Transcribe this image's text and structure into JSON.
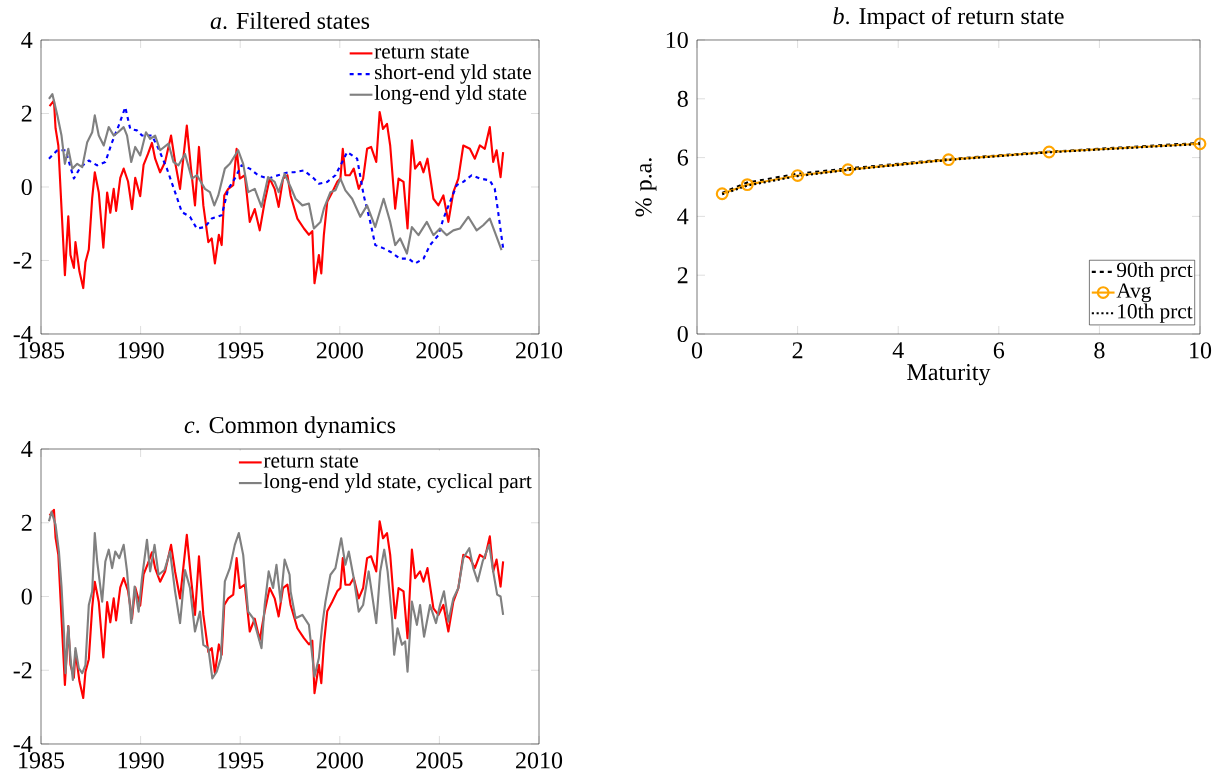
{
  "chart_data": [
    {
      "type": "line",
      "title": "*a*. Filtered states",
      "xlim": [
        1985,
        2010
      ],
      "xticks": [
        1985,
        1990,
        1995,
        2000,
        2005,
        2010
      ],
      "ylim": [
        -4,
        4
      ],
      "yticks": [
        -4,
        -2,
        0,
        2,
        4
      ],
      "legend": "top right",
      "series": [
        {
          "name": "return state",
          "color": "#ff0000",
          "line_style": "solid",
          "x": [
            1985.43,
            1985.65,
            1985.73,
            1985.87,
            1985.98,
            1986.2,
            1986.37,
            1986.48,
            1986.65,
            1986.73,
            1986.93,
            1987.12,
            1987.23,
            1987.4,
            1987.57,
            1987.7,
            1987.9,
            1988.13,
            1988.32,
            1988.48,
            1988.65,
            1988.77,
            1988.98,
            1989.15,
            1989.37,
            1989.57,
            1989.73,
            1989.98,
            1990.15,
            1990.37,
            1990.57,
            1990.73,
            1990.98,
            1991.23,
            1991.53,
            1991.73,
            1991.98,
            1992.32,
            1992.53,
            1992.73,
            1992.93,
            1993.15,
            1993.4,
            1993.57,
            1993.73,
            1993.93,
            1994.07,
            1994.2,
            1994.4,
            1994.65,
            1994.82,
            1994.98,
            1995.23,
            1995.48,
            1995.73,
            1995.98,
            1996.23,
            1996.48,
            1996.73,
            1996.93,
            1997.15,
            1997.37,
            1997.53,
            1997.87,
            1998.2,
            1998.45,
            1998.62,
            1998.73,
            1998.95,
            1999.07,
            1999.2,
            1999.37,
            1999.62,
            1999.87,
            2000.03,
            2000.15,
            2000.28,
            2000.5,
            2000.7,
            2000.95,
            2001.17,
            2001.37,
            2001.57,
            2001.83,
            2002.0,
            2002.17,
            2002.37,
            2002.53,
            2002.78,
            2002.95,
            2003.2,
            2003.4,
            2003.62,
            2003.78,
            2004.03,
            2004.2,
            2004.4,
            2004.7,
            2004.95,
            2005.2,
            2005.45,
            2005.7,
            2005.95,
            2006.2,
            2006.53,
            2006.78,
            2007.03,
            2007.28,
            2007.53,
            2007.7,
            2007.87,
            2008.07,
            2008.2
          ],
          "values": [
            2.2,
            2.35,
            1.6,
            1.13,
            -0.05,
            -2.4,
            -0.8,
            -1.85,
            -2.2,
            -1.5,
            -2.3,
            -2.75,
            -2.05,
            -1.7,
            -0.3,
            0.4,
            -0.15,
            -1.65,
            -0.15,
            -0.7,
            -0.05,
            -0.65,
            0.25,
            0.5,
            0.15,
            -0.6,
            0.25,
            -0.25,
            0.6,
            0.9,
            1.2,
            0.77,
            0.4,
            0.68,
            1.4,
            0.68,
            -0.05,
            1.67,
            0.5,
            -0.5,
            1.09,
            -0.5,
            -1.5,
            -1.4,
            -2.08,
            -1.3,
            -1.58,
            -0.23,
            -0.05,
            0.05,
            1.04,
            0.23,
            0.32,
            -0.95,
            -0.6,
            -1.18,
            -0.4,
            0.23,
            -0.05,
            -0.54,
            0.23,
            0.32,
            -0.23,
            -0.86,
            -1.13,
            -1.3,
            -1.2,
            -2.62,
            -1.85,
            -2.35,
            -1.3,
            -0.4,
            -0.14,
            0.14,
            0.23,
            1.04,
            0.32,
            0.32,
            0.5,
            -0.05,
            0.23,
            1.04,
            1.09,
            0.68,
            2.04,
            1.58,
            1.72,
            1.13,
            -0.59,
            0.23,
            0.14,
            -1.13,
            1.27,
            0.5,
            0.68,
            0.4,
            0.77,
            -0.32,
            -0.5,
            -0.23,
            -0.95,
            -0.14,
            0.23,
            1.13,
            1.04,
            0.77,
            1.13,
            1.04,
            1.63,
            0.68,
            1.0,
            0.27,
            0.95
          ]
        },
        {
          "name": "short-end yld state",
          "color": "#0000ff",
          "line_style": "dashed",
          "x": [
            1985.4,
            1985.82,
            1986.23,
            1986.65,
            1986.98,
            1987.4,
            1987.82,
            1988.23,
            1988.57,
            1988.9,
            1989.23,
            1989.48,
            1989.82,
            1990.07,
            1990.57,
            1990.9,
            1991.32,
            1991.73,
            1992.07,
            1992.48,
            1992.82,
            1993.23,
            1993.57,
            1994.07,
            1994.4,
            1994.73,
            1995.07,
            1995.48,
            1995.9,
            1996.4,
            1996.9,
            1997.4,
            1997.7,
            1998.2,
            1998.7,
            1998.95,
            1999.37,
            1999.78,
            2000.12,
            2000.37,
            2000.87,
            2001.2,
            2001.53,
            2001.78,
            2002.2,
            2002.53,
            2003.03,
            2003.45,
            2003.78,
            2004.2,
            2004.53,
            2004.95,
            2005.2,
            2005.53,
            2005.87,
            2006.2,
            2006.62,
            2007.03,
            2007.53,
            2007.78,
            2007.95,
            2008.2
          ],
          "values": [
            0.77,
            1.0,
            1.0,
            0.23,
            0.54,
            0.72,
            0.59,
            0.68,
            1.22,
            1.67,
            2.17,
            1.58,
            1.54,
            1.4,
            1.4,
            1.04,
            0.5,
            -0.14,
            -0.68,
            -0.81,
            -1.13,
            -1.09,
            -0.86,
            -0.77,
            -0.05,
            0.23,
            0.59,
            0.5,
            0.32,
            0.23,
            0.32,
            0.4,
            0.4,
            0.45,
            0.23,
            0.09,
            0.14,
            0.32,
            0.68,
            0.95,
            0.77,
            -0.23,
            -0.95,
            -1.58,
            -1.67,
            -1.76,
            -1.95,
            -1.95,
            -2.08,
            -1.95,
            -1.58,
            -1.31,
            -0.86,
            -0.41,
            0.05,
            0.14,
            0.32,
            0.23,
            0.18,
            -0.05,
            -0.68,
            -1.67
          ]
        },
        {
          "name": "long-end yld state",
          "color": "#808080",
          "line_style": "solid",
          "x": [
            1985.4,
            1985.57,
            1985.82,
            1986.03,
            1986.2,
            1986.37,
            1986.57,
            1986.82,
            1987.07,
            1987.32,
            1987.57,
            1987.7,
            1987.9,
            1988.15,
            1988.4,
            1988.65,
            1988.87,
            1989.15,
            1989.32,
            1989.53,
            1989.73,
            1989.98,
            1990.27,
            1990.48,
            1990.73,
            1990.98,
            1991.4,
            1991.65,
            1991.9,
            1992.23,
            1992.57,
            1992.83,
            1993.23,
            1993.48,
            1993.7,
            1993.9,
            1994.23,
            1994.48,
            1994.9,
            1995.15,
            1995.4,
            1995.73,
            1996.07,
            1996.4,
            1996.73,
            1996.93,
            1997.23,
            1997.53,
            1997.78,
            1998.12,
            1998.45,
            1998.7,
            1999.03,
            1999.2,
            1999.53,
            1999.78,
            2000.03,
            2000.28,
            2000.62,
            2001.03,
            2001.37,
            2001.78,
            2002.2,
            2002.53,
            2002.78,
            2003.03,
            2003.37,
            2003.62,
            2003.95,
            2004.37,
            2004.7,
            2005.03,
            2005.37,
            2005.7,
            2006.03,
            2006.45,
            2006.87,
            2007.2,
            2007.53,
            2007.78,
            2008.12
          ],
          "values": [
            2.4,
            2.53,
            1.95,
            1.4,
            0.63,
            1.04,
            0.5,
            0.63,
            0.54,
            1.22,
            1.49,
            1.95,
            1.4,
            1.13,
            1.63,
            1.4,
            1.49,
            1.63,
            1.4,
            0.68,
            1.09,
            0.86,
            1.49,
            1.31,
            1.4,
            1.0,
            1.18,
            0.68,
            0.59,
            0.9,
            0.23,
            0.32,
            -0.05,
            -0.14,
            -0.5,
            -0.23,
            0.5,
            0.63,
            1.0,
            0.63,
            -0.14,
            -0.05,
            -0.54,
            0.27,
            0.14,
            -0.14,
            0.36,
            0,
            -0.32,
            -0.5,
            -0.45,
            -1.13,
            -0.95,
            -0.59,
            -0.14,
            -0.09,
            0.23,
            -0.09,
            -0.32,
            -0.81,
            -0.5,
            -1.09,
            -0.32,
            -0.95,
            -1.58,
            -1.4,
            -1.81,
            -1.09,
            -1.31,
            -0.95,
            -1.31,
            -1.13,
            -1.31,
            -1.18,
            -1.13,
            -0.81,
            -1.18,
            -1.04,
            -0.86,
            -1.22,
            -1.72
          ]
        }
      ]
    },
    {
      "type": "line",
      "title": "*b*. Impact of return state",
      "xlabel": "Maturity",
      "ylabel": "% p.a.",
      "x": [
        0.5,
        1,
        2,
        3,
        5,
        7,
        10
      ],
      "xlim": [
        0,
        10
      ],
      "xticks": [
        0,
        2,
        4,
        6,
        8,
        10
      ],
      "ylim": [
        0,
        10
      ],
      "yticks": [
        0,
        2,
        4,
        6,
        8,
        10
      ],
      "legend": "bottom right",
      "series": [
        {
          "name": "90th prct",
          "color": "#000000",
          "line_style": "dashed",
          "values": [
            4.8,
            5.15,
            5.45,
            5.63,
            5.95,
            6.2,
            6.5
          ]
        },
        {
          "name": "Avg",
          "color": "#ffa500",
          "line_style": "solid",
          "marker": "circle",
          "values": [
            4.77,
            5.08,
            5.39,
            5.59,
            5.93,
            6.19,
            6.47
          ]
        },
        {
          "name": "10th prct",
          "color": "#000000",
          "line_style": "dotted",
          "values": [
            4.75,
            5.05,
            5.37,
            5.58,
            5.92,
            6.18,
            6.46
          ]
        }
      ]
    },
    {
      "type": "line",
      "title": "*c*. Common dynamics",
      "xlim": [
        1985,
        2010
      ],
      "xticks": [
        1985,
        1990,
        1995,
        2000,
        2005,
        2010
      ],
      "ylim": [
        -4,
        4
      ],
      "yticks": [
        -4,
        -2,
        0,
        2,
        4
      ],
      "legend": "top right",
      "series": [
        {
          "name": "return state",
          "color": "#ff0000",
          "line_style": "solid",
          "x": [
            1985.43,
            1985.65,
            1985.73,
            1985.87,
            1985.98,
            1986.2,
            1986.37,
            1986.48,
            1986.65,
            1986.73,
            1986.93,
            1987.12,
            1987.23,
            1987.4,
            1987.57,
            1987.7,
            1987.9,
            1988.13,
            1988.32,
            1988.48,
            1988.65,
            1988.77,
            1988.98,
            1989.15,
            1989.37,
            1989.57,
            1989.73,
            1989.98,
            1990.15,
            1990.37,
            1990.57,
            1990.73,
            1990.98,
            1991.23,
            1991.53,
            1991.73,
            1991.98,
            1992.32,
            1992.53,
            1992.73,
            1992.93,
            1993.15,
            1993.4,
            1993.57,
            1993.73,
            1993.93,
            1994.07,
            1994.2,
            1994.4,
            1994.65,
            1994.82,
            1994.98,
            1995.23,
            1995.48,
            1995.73,
            1995.98,
            1996.23,
            1996.48,
            1996.73,
            1996.93,
            1997.15,
            1997.37,
            1997.53,
            1997.87,
            1998.2,
            1998.45,
            1998.62,
            1998.73,
            1998.95,
            1999.07,
            1999.2,
            1999.37,
            1999.62,
            1999.87,
            2000.03,
            2000.15,
            2000.28,
            2000.5,
            2000.7,
            2000.95,
            2001.17,
            2001.37,
            2001.57,
            2001.83,
            2002.0,
            2002.17,
            2002.37,
            2002.53,
            2002.78,
            2002.95,
            2003.2,
            2003.4,
            2003.62,
            2003.78,
            2004.03,
            2004.2,
            2004.4,
            2004.7,
            2004.95,
            2005.2,
            2005.45,
            2005.7,
            2005.95,
            2006.2,
            2006.53,
            2006.78,
            2007.03,
            2007.28,
            2007.53,
            2007.7,
            2007.87,
            2008.07,
            2008.2
          ],
          "values": [
            2.2,
            2.35,
            1.6,
            1.13,
            -0.05,
            -2.4,
            -0.8,
            -1.85,
            -2.2,
            -1.5,
            -2.3,
            -2.75,
            -2.05,
            -1.7,
            -0.3,
            0.4,
            -0.15,
            -1.65,
            -0.15,
            -0.7,
            -0.05,
            -0.65,
            0.25,
            0.5,
            0.15,
            -0.6,
            0.25,
            -0.25,
            0.6,
            0.9,
            1.2,
            0.77,
            0.4,
            0.68,
            1.4,
            0.68,
            -0.05,
            1.67,
            0.5,
            -0.5,
            1.09,
            -0.5,
            -1.5,
            -1.4,
            -2.08,
            -1.3,
            -1.58,
            -0.23,
            -0.05,
            0.05,
            1.04,
            0.23,
            0.32,
            -0.95,
            -0.6,
            -1.18,
            -0.4,
            0.23,
            -0.05,
            -0.54,
            0.23,
            0.32,
            -0.23,
            -0.86,
            -1.13,
            -1.3,
            -1.2,
            -2.62,
            -1.85,
            -2.35,
            -1.3,
            -0.4,
            -0.14,
            0.14,
            0.23,
            1.04,
            0.32,
            0.32,
            0.5,
            -0.05,
            0.23,
            1.04,
            1.09,
            0.68,
            2.04,
            1.58,
            1.72,
            1.13,
            -0.59,
            0.23,
            0.14,
            -1.13,
            1.27,
            0.5,
            0.68,
            0.4,
            0.77,
            -0.32,
            -0.5,
            -0.23,
            -0.95,
            -0.14,
            0.23,
            1.13,
            1.04,
            0.77,
            1.13,
            1.04,
            1.63,
            0.68,
            1.0,
            0.27,
            0.95
          ]
        },
        {
          "name": "long-end yld state, cyclical part",
          "color": "#808080",
          "line_style": "solid",
          "x": [
            1985.4,
            1985.53,
            1985.73,
            1985.9,
            1986.03,
            1986.15,
            1986.23,
            1986.37,
            1986.48,
            1986.6,
            1986.73,
            1986.9,
            1987.07,
            1987.23,
            1987.4,
            1987.57,
            1987.7,
            1987.82,
            1988.07,
            1988.23,
            1988.4,
            1988.57,
            1988.73,
            1988.93,
            1989.15,
            1989.32,
            1989.53,
            1989.7,
            1989.9,
            1990.07,
            1990.32,
            1990.48,
            1990.7,
            1990.9,
            1991.2,
            1991.48,
            1991.73,
            1991.98,
            1992.23,
            1992.48,
            1992.73,
            1992.98,
            1993.15,
            1993.4,
            1993.6,
            1993.82,
            1994.03,
            1994.23,
            1994.48,
            1994.73,
            1994.93,
            1995.15,
            1995.4,
            1995.65,
            1996.07,
            1996.23,
            1996.43,
            1996.65,
            1996.82,
            1997.03,
            1997.23,
            1997.48,
            1997.53,
            1997.78,
            1998.12,
            1998.45,
            1998.73,
            1998.95,
            1999.12,
            1999.28,
            1999.53,
            1999.78,
            2000.07,
            2000.28,
            2000.45,
            2000.7,
            2000.95,
            2001.17,
            2001.45,
            2001.83,
            2002.03,
            2002.23,
            2002.4,
            2002.62,
            2002.73,
            2002.9,
            2003.12,
            2003.28,
            2003.4,
            2003.62,
            2003.87,
            2004.03,
            2004.23,
            2004.53,
            2004.83,
            2005.03,
            2005.23,
            2005.45,
            2005.7,
            2005.95,
            2006.2,
            2006.5,
            2006.7,
            2006.92,
            2007.17,
            2007.5,
            2007.7,
            2007.9,
            2008.07,
            2008.2
          ],
          "values": [
            2.04,
            2.3,
            1.95,
            1.22,
            0.27,
            -0.95,
            -2.08,
            -0.81,
            -1.67,
            -2.26,
            -1.4,
            -1.95,
            -2.08,
            -1.86,
            -0.23,
            0.14,
            1.72,
            0.95,
            -0.14,
            0.95,
            1.27,
            0.77,
            1.22,
            1.04,
            1.4,
            0.68,
            -0.72,
            0.27,
            -0.41,
            0.5,
            1.54,
            0.68,
            1.4,
            0.59,
            0.72,
            1.22,
            0.14,
            -0.72,
            0.72,
            0.23,
            -0.95,
            -0.41,
            -1.31,
            -1.4,
            -2.22,
            -2.04,
            -1.67,
            0.41,
            0.77,
            1.4,
            1.72,
            1.13,
            -0.41,
            -0.59,
            -1.4,
            -0.23,
            0.68,
            0.23,
            0.86,
            -0.14,
            1.0,
            0.59,
            0.14,
            -0.59,
            -0.5,
            -0.77,
            -2.17,
            -1.67,
            -0.77,
            -0.14,
            0.59,
            0.77,
            1.58,
            0.86,
            1.22,
            0.5,
            -0.41,
            -0.23,
            0.68,
            -0.72,
            0.68,
            1.27,
            0.68,
            -0.59,
            -1.58,
            -0.86,
            -1.31,
            -1.22,
            -2.04,
            -0.14,
            -0.77,
            -0.23,
            -1.09,
            -0.23,
            -0.72,
            -0.23,
            0.14,
            -0.68,
            -0.05,
            0.23,
            1.04,
            1.31,
            0.77,
            0.41,
            0.95,
            1.4,
            0.68,
            0.05,
            0.0,
            -0.5
          ]
        }
      ]
    }
  ]
}
